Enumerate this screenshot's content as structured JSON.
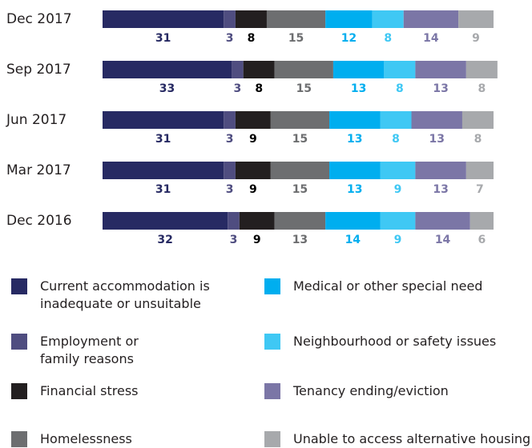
{
  "chart_data": {
    "type": "stacked-bar-horizontal",
    "categories": [
      "Dec 2017",
      "Sep 2017",
      "Jun 2017",
      "Mar 2017",
      "Dec 2016"
    ],
    "xlim": [
      0,
      100
    ],
    "series": [
      {
        "name": "Current accommodation is inadequate or unsuitable",
        "color": "#272a63",
        "values": [
          31,
          33,
          31,
          31,
          32
        ]
      },
      {
        "name": "Employment or family reasons",
        "color": "#4f4d80",
        "values": [
          3,
          3,
          3,
          3,
          3
        ]
      },
      {
        "name": "Financial stress",
        "color": "#231f20",
        "values": [
          8,
          8,
          9,
          9,
          9
        ]
      },
      {
        "name": "Homelessness",
        "color": "#6d6e70",
        "values": [
          15,
          15,
          15,
          15,
          13
        ]
      },
      {
        "name": "Medical or other special need",
        "color": "#00aeef",
        "values": [
          12,
          13,
          13,
          13,
          14
        ]
      },
      {
        "name": "Neighbourhood or safety issues",
        "color": "#3fc8f4",
        "values": [
          8,
          8,
          8,
          9,
          9
        ]
      },
      {
        "name": "Tenancy ending/eviction",
        "color": "#7b76a6",
        "values": [
          14,
          13,
          13,
          13,
          14
        ]
      },
      {
        "name": "Unable to access alternative housing",
        "color": "#a7a9ac",
        "values": [
          9,
          8,
          8,
          7,
          6
        ]
      }
    ]
  }
}
